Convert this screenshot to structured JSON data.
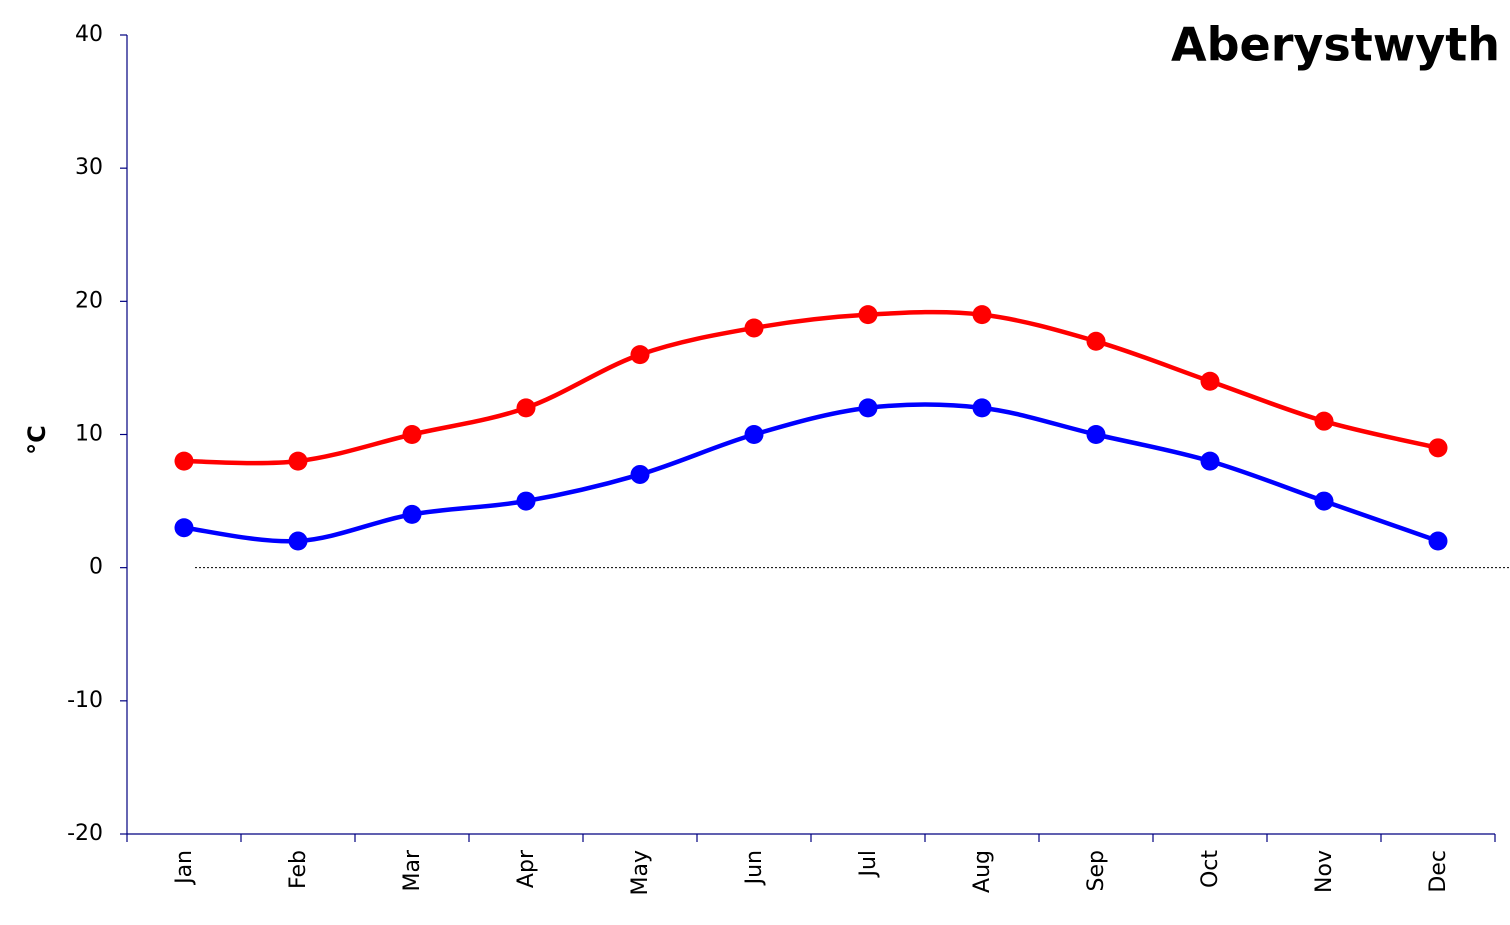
{
  "chart_data": {
    "type": "line",
    "title": "Aberystwyth",
    "y_label": "°C",
    "categories": [
      "Jan",
      "Feb",
      "Mar",
      "Apr",
      "May",
      "Jun",
      "Jul",
      "Aug",
      "Sep",
      "Oct",
      "Nov",
      "Dec"
    ],
    "series": [
      {
        "color": "#ff0000",
        "values": [
          8,
          8,
          10,
          12,
          16,
          18,
          19,
          19,
          17,
          14,
          11,
          9
        ]
      },
      {
        "color": "#0000ff",
        "values": [
          3,
          2,
          4,
          5,
          7,
          10,
          12,
          12,
          10,
          8,
          5,
          2
        ]
      }
    ],
    "ylim": [
      -20,
      40
    ],
    "yticks": [
      -20,
      -10,
      0,
      10,
      20,
      30,
      40
    ],
    "grid": false,
    "zero_line": true,
    "smooth": true
  }
}
